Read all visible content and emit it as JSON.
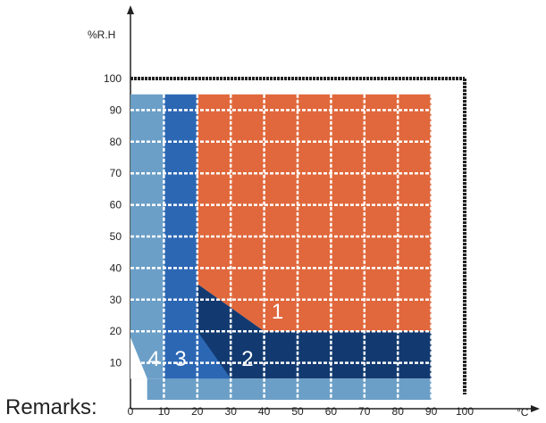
{
  "chart_data": {
    "type": "area",
    "xlabel": "",
    "ylabel": "",
    "x_unit": "°C",
    "y_unit": "%R.H",
    "xlim": [
      0,
      100
    ],
    "ylim": [
      0,
      100
    ],
    "x_ticks": [
      0,
      10,
      20,
      30,
      40,
      50,
      60,
      70,
      80,
      90,
      100
    ],
    "y_ticks": [
      10,
      20,
      30,
      40,
      50,
      60,
      70,
      80,
      90,
      100
    ],
    "grid": true,
    "colors": {
      "zone1": "#e0683c",
      "zone2": "#123a70",
      "zone3": "#2c67b4",
      "zone4": "#6b9fc7",
      "grid": "#ffffff",
      "axis": "#222222"
    },
    "zones": [
      {
        "label": "1",
        "polygon": [
          [
            20,
            95
          ],
          [
            90,
            95
          ],
          [
            90,
            20
          ],
          [
            40,
            20
          ],
          [
            20,
            35
          ]
        ]
      },
      {
        "label": "2",
        "polygon": [
          [
            20,
            35
          ],
          [
            40,
            20
          ],
          [
            90,
            20
          ],
          [
            90,
            5
          ],
          [
            20,
            5
          ]
        ]
      },
      {
        "label": "3",
        "polygon": [
          [
            10,
            95
          ],
          [
            20,
            95
          ],
          [
            20,
            5
          ],
          [
            10,
            5
          ]
        ]
      },
      {
        "label": "4",
        "polygon": [
          [
            0,
            95
          ],
          [
            10,
            95
          ],
          [
            10,
            5
          ],
          [
            0,
            5
          ]
        ]
      }
    ]
  },
  "remarks_label": "Remarks:"
}
